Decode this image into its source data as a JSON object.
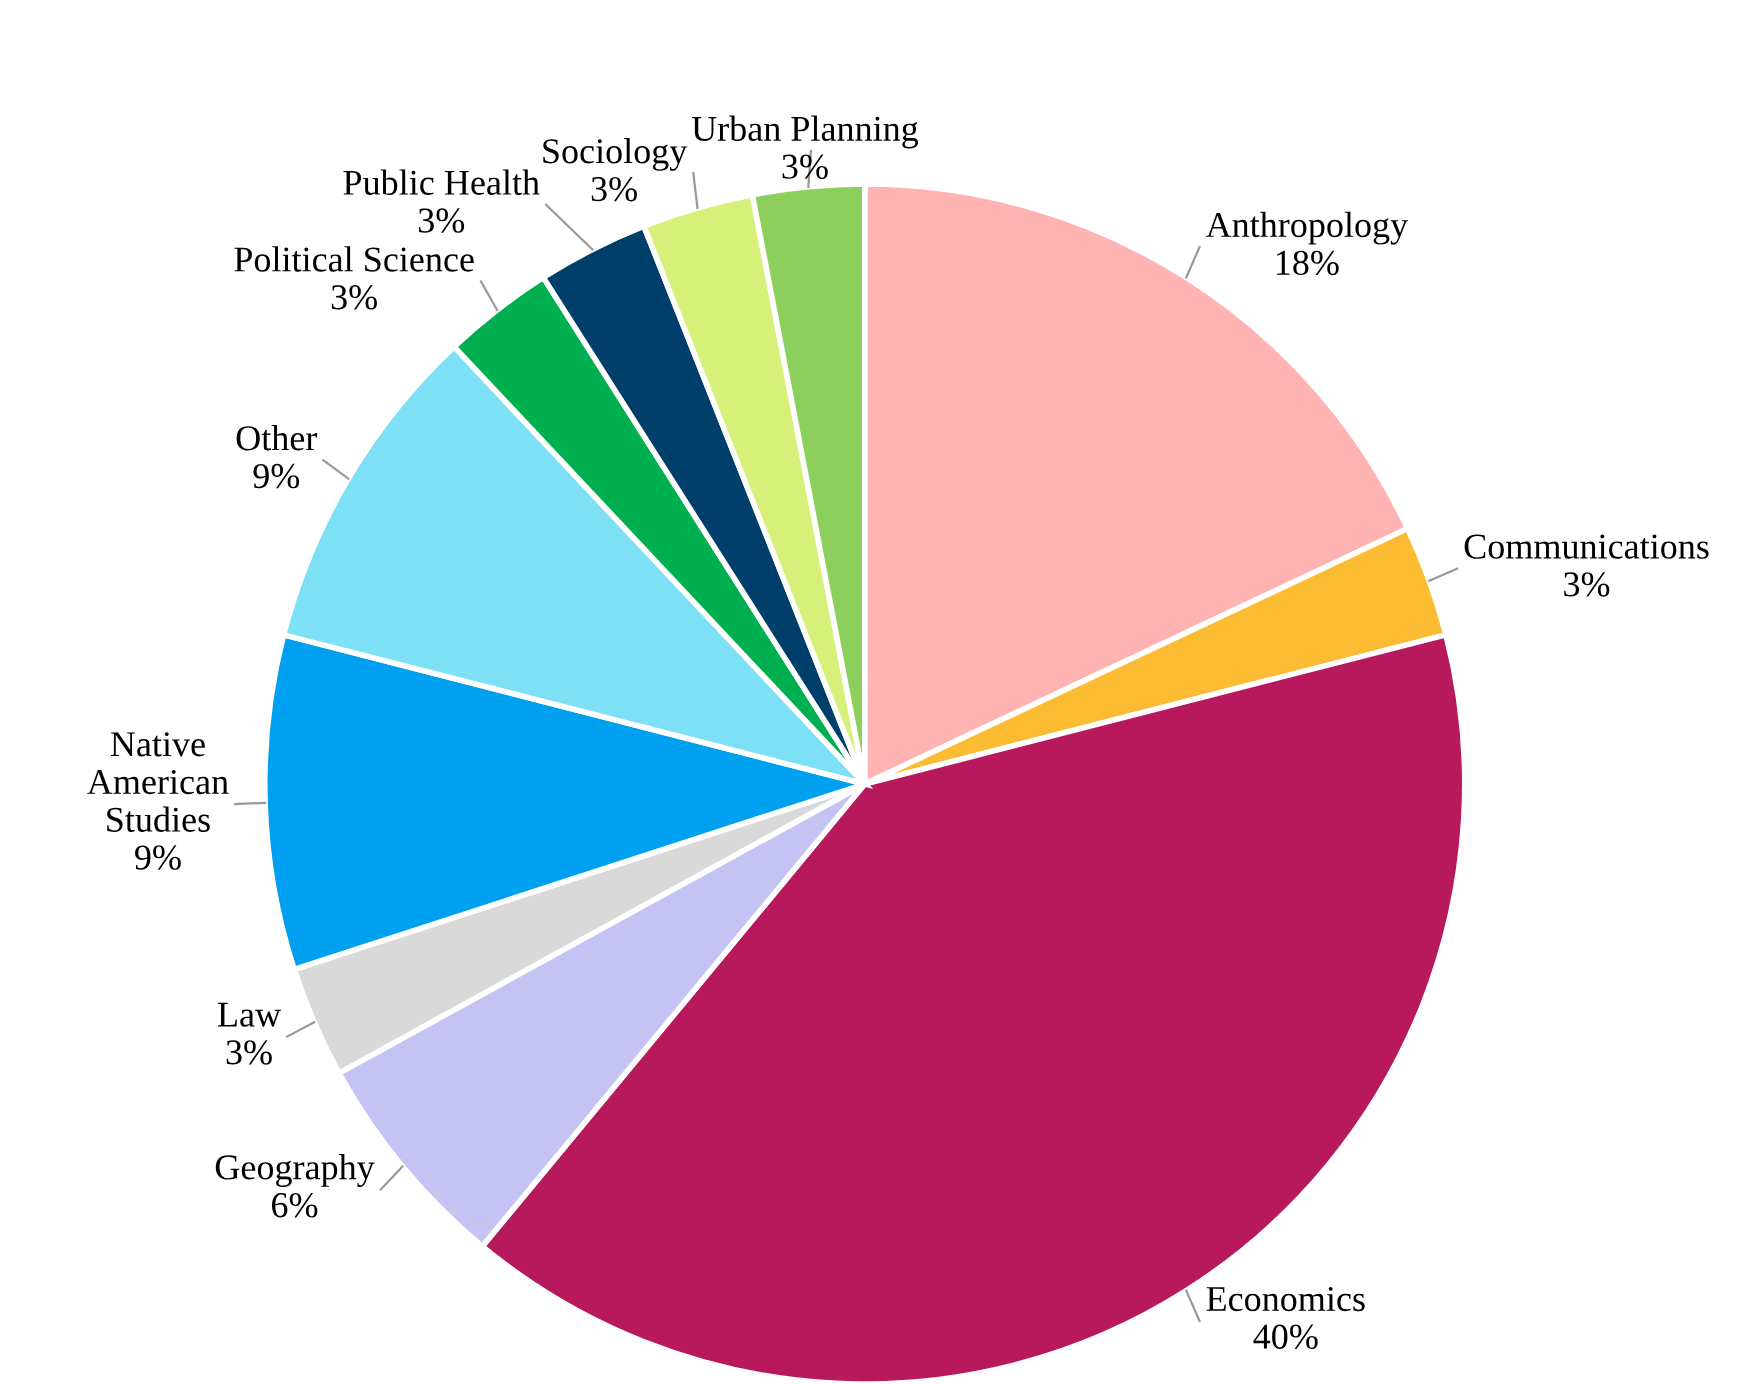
{
  "chart_data": {
    "type": "pie",
    "categories": [
      "Anthropology",
      "Communications",
      "Economics",
      "Geography",
      "Law",
      "Native American Studies",
      "Other",
      "Political Science",
      "Public Health",
      "Sociology",
      "Urban Planning"
    ],
    "values": [
      18,
      3,
      40,
      6,
      3,
      9,
      9,
      3,
      3,
      3,
      3
    ],
    "colors": [
      "#ffb3b3",
      "#fbbc33",
      "#b8185c",
      "#c5c3f3",
      "#d9d9d9",
      "#00a0f0",
      "#7ee0f5",
      "#00b050",
      "#003f6b",
      "#d7f07a",
      "#8dcf5c"
    ],
    "value_labels": [
      "18%",
      "3%",
      "40%",
      "6%",
      "3%",
      "9%",
      "9%",
      "3%",
      "3%",
      "3%",
      "3%"
    ],
    "data_labels": true,
    "legend": false
  }
}
